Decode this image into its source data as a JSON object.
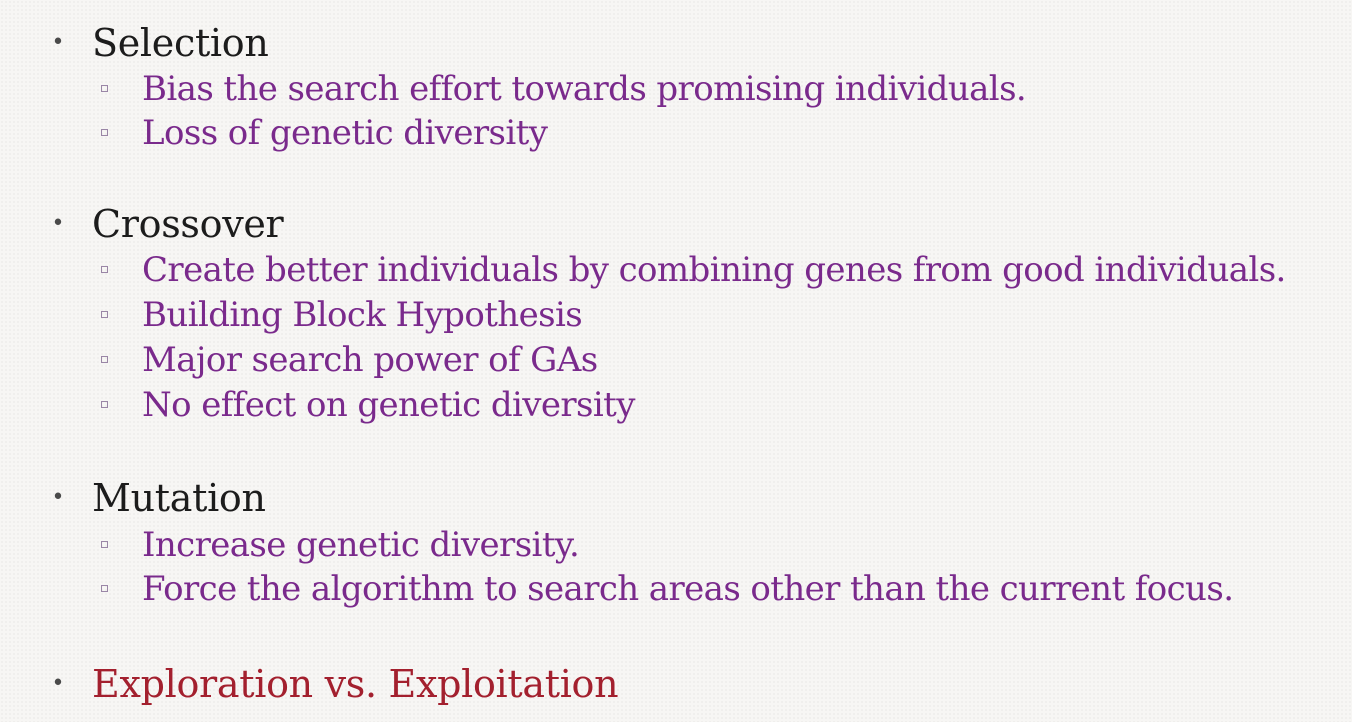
{
  "sections": [
    {
      "heading": "Selection",
      "items": [
        "Bias the search effort towards promising individuals.",
        "Loss of genetic diversity"
      ]
    },
    {
      "heading": "Crossover",
      "items": [
        "Create better individuals by combining genes from good individuals.",
        "Building Block Hypothesis",
        "Major search power of GAs",
        "No effect on  genetic diversity"
      ]
    },
    {
      "heading": "Mutation",
      "items": [
        "Increase genetic diversity.",
        "Force the algorithm to search areas other than the current focus."
      ]
    },
    {
      "heading": "Exploration vs. Exploitation",
      "items": []
    }
  ],
  "colors": {
    "heading": "#1c1c1c",
    "subitem": "#7a2a8c",
    "accent_heading": "#a3202e",
    "background": "#f7f6f4"
  }
}
